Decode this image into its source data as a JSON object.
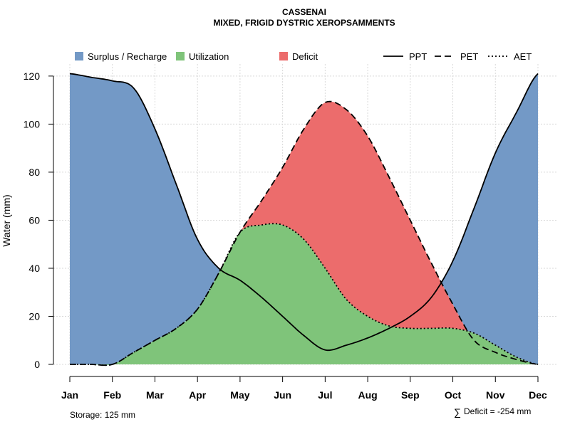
{
  "chart_data": {
    "type": "area",
    "title": "CASSENAI",
    "subtitle": "MIXED, FRIGID DYSTRIC XEROPSAMMENTS",
    "xlabel": "",
    "ylabel": "Water (mm)",
    "ylim": [
      0,
      125
    ],
    "yticks": [
      0,
      20,
      40,
      60,
      80,
      100,
      120
    ],
    "grid": true,
    "legend_position": "top",
    "categories": [
      "Jan",
      "Feb",
      "Mar",
      "Apr",
      "May",
      "Jun",
      "Jul",
      "Aug",
      "Sep",
      "Oct",
      "Nov",
      "Dec"
    ],
    "x": [
      1,
      1.5,
      2,
      2.5,
      3,
      3.5,
      4,
      4.5,
      5,
      5.5,
      6,
      6.5,
      7,
      7.5,
      8,
      8.5,
      9,
      9.5,
      10,
      10.5,
      11,
      11.5,
      12
    ],
    "series": [
      {
        "name": "PPT",
        "style": "solid",
        "values": [
          121,
          119.5,
          118,
          115,
          98,
          75,
          52,
          40,
          35,
          28,
          20,
          12,
          6,
          8,
          11,
          15,
          20,
          28,
          43,
          65,
          88,
          105,
          121
        ]
      },
      {
        "name": "PET",
        "style": "dashed",
        "values": [
          0,
          0,
          0,
          5,
          10,
          15,
          23,
          38,
          55,
          68,
          82,
          98,
          109,
          106,
          95,
          78,
          60,
          42,
          25,
          10,
          5,
          2,
          0
        ]
      },
      {
        "name": "AET",
        "style": "dotted",
        "values": [
          0,
          0,
          0,
          5,
          10,
          15,
          23,
          38,
          55,
          58,
          58,
          52,
          40,
          27,
          20,
          16,
          15,
          15,
          15,
          13,
          8,
          3,
          0
        ]
      }
    ],
    "legend": [
      {
        "label": "Surplus / Recharge",
        "kind": "box",
        "color": "#7399c6"
      },
      {
        "label": "Utilization",
        "kind": "box",
        "color": "#7fc47a"
      },
      {
        "label": "Deficit",
        "kind": "box",
        "color": "#ec6c6c"
      },
      {
        "label": "PPT",
        "kind": "line",
        "dash": "solid"
      },
      {
        "label": "PET",
        "kind": "line",
        "dash": "dashed"
      },
      {
        "label": "AET",
        "kind": "line",
        "dash": "dotted"
      }
    ],
    "colors": {
      "surplus": "#7399c6",
      "utilization": "#7fc47a",
      "deficit": "#ec6c6c"
    },
    "annotations": {
      "storage": "Storage: 125 mm",
      "deficit_symbol": "∑",
      "deficit": "Deficit = -254 mm"
    }
  }
}
